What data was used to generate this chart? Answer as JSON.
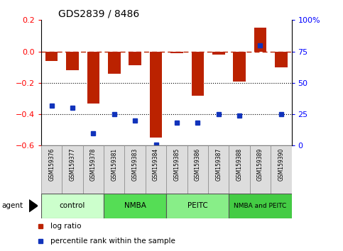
{
  "title": "GDS2839 / 8486",
  "samples": [
    "GSM159376",
    "GSM159377",
    "GSM159378",
    "GSM159381",
    "GSM159383",
    "GSM159384",
    "GSM159385",
    "GSM159386",
    "GSM159387",
    "GSM159388",
    "GSM159389",
    "GSM159390"
  ],
  "log_ratio": [
    -0.06,
    -0.12,
    -0.33,
    -0.14,
    -0.09,
    -0.55,
    -0.01,
    -0.28,
    -0.02,
    -0.19,
    0.15,
    -0.1
  ],
  "percentile_rank": [
    32,
    30,
    10,
    25,
    20,
    1,
    18,
    18,
    25,
    24,
    80,
    25
  ],
  "groups": [
    {
      "label": "control",
      "start": 0,
      "end": 3,
      "color": "#ccffcc"
    },
    {
      "label": "NMBA",
      "start": 3,
      "end": 6,
      "color": "#55dd55"
    },
    {
      "label": "PEITC",
      "start": 6,
      "end": 9,
      "color": "#88ee88"
    },
    {
      "label": "NMBA and PEITC",
      "start": 9,
      "end": 12,
      "color": "#44cc44"
    }
  ],
  "bar_color": "#bb2200",
  "dot_color": "#1133bb",
  "ylim_left": [
    -0.6,
    0.2
  ],
  "ylim_right": [
    0,
    100
  ],
  "dotted_lines": [
    -0.2,
    -0.4
  ],
  "right_ticks": [
    0,
    25,
    50,
    75,
    100
  ],
  "right_tick_labels": [
    "0",
    "25",
    "50",
    "75",
    "100%"
  ],
  "left_ticks": [
    -0.6,
    -0.4,
    -0.2,
    0,
    0.2
  ]
}
